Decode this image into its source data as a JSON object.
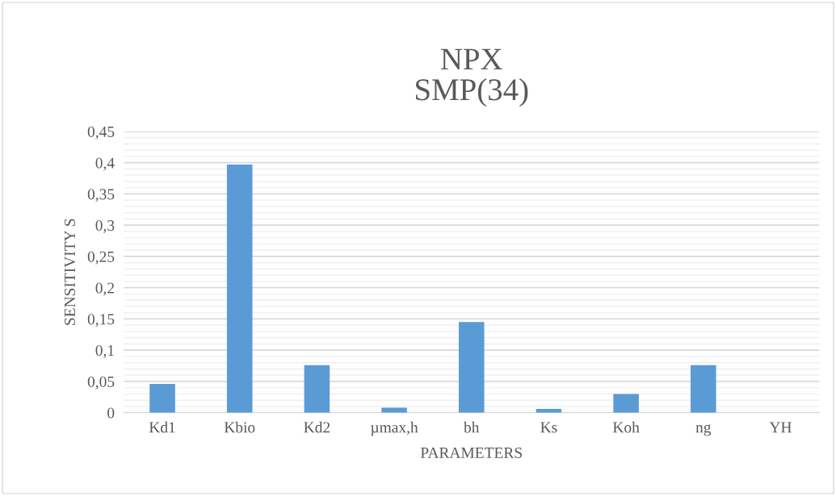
{
  "chart_data": {
    "type": "bar",
    "title": "NPX\nSMP(34)",
    "xlabel": "PARAMETERS",
    "ylabel": "SENSITIVITY S",
    "categories": [
      "Kd1",
      "Kbio",
      "Kd2",
      "µmax,h",
      "bh",
      "Ks",
      "Koh",
      "ng",
      "YH"
    ],
    "values": [
      0.046,
      0.397,
      0.076,
      0.008,
      0.145,
      0.006,
      0.03,
      0.076,
      0
    ],
    "color": "#5b9bd5",
    "ylim": [
      0,
      0.45
    ],
    "yticks": [
      0,
      {
        "value": 0.05,
        "label": "0,05"
      },
      {
        "value": 0.1,
        "label": "0,1"
      },
      {
        "value": 0.15,
        "label": "0,15"
      },
      {
        "value": 0.2,
        "label": "0,2"
      },
      {
        "value": 0.25,
        "label": "0,25"
      },
      {
        "value": 0.3,
        "label": "0,3"
      },
      {
        "value": 0.35,
        "label": "0,35"
      },
      {
        "value": 0.4,
        "label": "0,4"
      },
      {
        "value": 0.45,
        "label": "0,45"
      }
    ],
    "grid": "y"
  }
}
